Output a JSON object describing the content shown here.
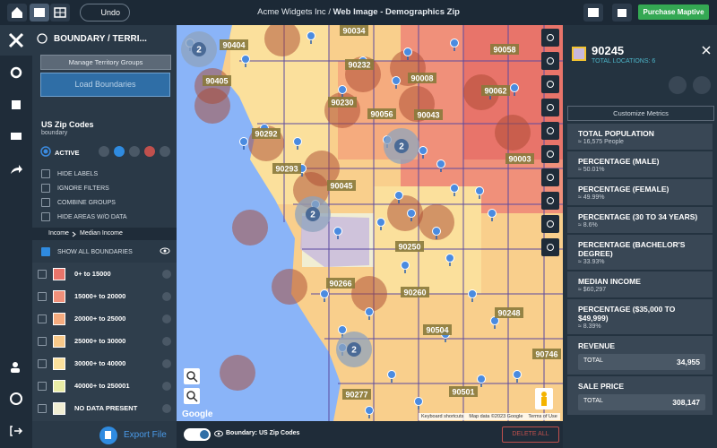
{
  "top_bar": {
    "undo": "Undo",
    "account": "Acme Widgets Inc",
    "separator": "/",
    "map_name": "Web Image - Demographics Zip",
    "purchase": "Purchase Maptive"
  },
  "left_panel": {
    "header": "BOUNDARY / TERRI...",
    "manage_groups": "Manage Territory Groups",
    "load_boundaries": "Load Boundaries",
    "layer_name": "US Zip Codes",
    "layer_type": "boundary",
    "status": "ACTIVE",
    "options": [
      "HIDE LABELS",
      "IGNORE FILTERS",
      "COMBINE GROUPS",
      "HIDE AREAS W/O DATA"
    ],
    "breadcrumb": [
      "Income",
      "Median Income"
    ],
    "show_all": "SHOW ALL BOUNDARIES",
    "legend": [
      {
        "label": "0+ to 15000",
        "color": "#e8746a"
      },
      {
        "label": "15000+ to 20000",
        "color": "#f0907a"
      },
      {
        "label": "20000+ to 25000",
        "color": "#f5ab7e"
      },
      {
        "label": "25000+ to 30000",
        "color": "#f8c98a"
      },
      {
        "label": "30000+ to 40000",
        "color": "#fbe09c"
      },
      {
        "label": "40000+ to 250001",
        "color": "#e9eca6"
      },
      {
        "label": "NO DATA PRESENT",
        "color": "#f1eed3"
      }
    ],
    "export": "Export File"
  },
  "map": {
    "zip_labels": [
      "90404",
      "90034",
      "90232",
      "90008",
      "90058",
      "90062",
      "90405",
      "90230",
      "90056",
      "90043",
      "90292",
      "90003",
      "90293",
      "90045",
      "90250",
      "90266",
      "90260",
      "90248",
      "90504",
      "90746",
      "90277",
      "90501"
    ],
    "cluster_counts": [
      "2",
      "2",
      "2",
      "2"
    ],
    "google": "Google",
    "attribution": [
      "Keyboard shortcuts",
      "Map data ©2023 Google",
      "Terms of Use"
    ],
    "boundary_toggle": "Boundary: US Zip Codes",
    "delete_all": "DELETE ALL"
  },
  "details": {
    "zip": "90245",
    "locations": "TOTAL LOCATIONS: 6",
    "customize": "Customize Metrics",
    "metrics": [
      {
        "name": "TOTAL POPULATION",
        "value": "≈ 16,575 People"
      },
      {
        "name": "PERCENTAGE (MALE)",
        "value": "≈ 50.01%"
      },
      {
        "name": "PERCENTAGE (FEMALE)",
        "value": "≈ 49.99%"
      },
      {
        "name": "PERCENTAGE (30 TO 34 YEARS)",
        "value": "≈ 8.6%"
      },
      {
        "name": "PERCENTAGE (BACHELOR'S DEGREE)",
        "value": "≈ 33.93%"
      },
      {
        "name": "MEDIAN INCOME",
        "value": "≈ $60,297"
      },
      {
        "name": "PERCENTAGE ($35,000 TO $49,999)",
        "value": "≈ 8.39%"
      }
    ],
    "totals": [
      {
        "name": "REVENUE",
        "label": "TOTAL",
        "value": "34,955"
      },
      {
        "name": "SALE PRICE",
        "label": "TOTAL",
        "value": "308,147"
      }
    ]
  }
}
